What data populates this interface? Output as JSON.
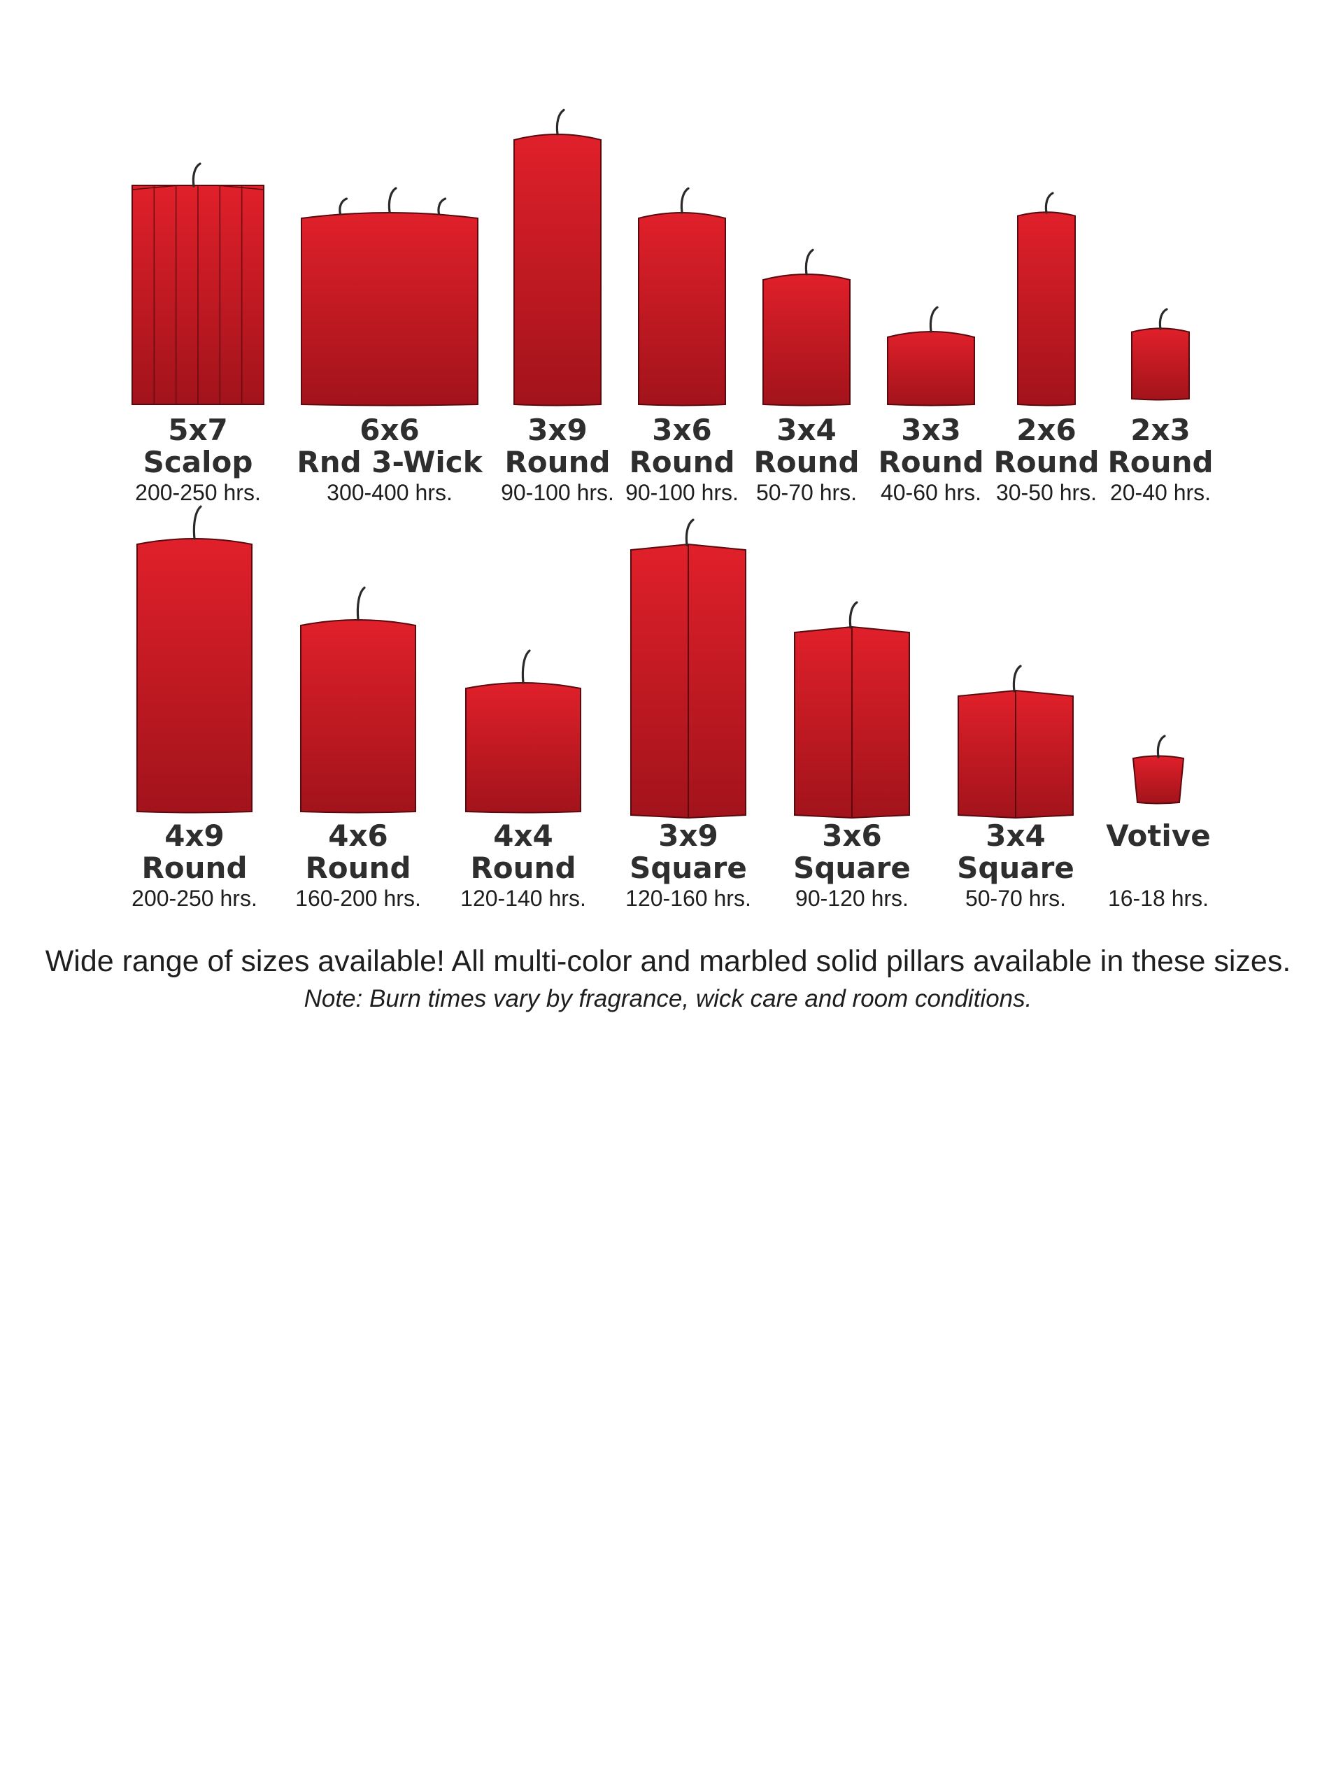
{
  "colors": {
    "candle_top": "#e0202a",
    "candle_bottom": "#a2131b",
    "outline": "#5a0a0e",
    "wick": "#2a2a2a",
    "text": "#2b2b2b"
  },
  "candles": [
    {
      "id": "5x7-scalop",
      "style": "scalop",
      "size": "5x7",
      "shape": "Scalop",
      "hours": "200-250 hrs."
    },
    {
      "id": "6x6-rnd-3-wick",
      "style": "round",
      "wicks": 3,
      "size": "6x6",
      "shape": "Rnd 3-Wick",
      "hours": "300-400 hrs."
    },
    {
      "id": "3x9-round",
      "style": "round",
      "size": "3x9",
      "shape": "Round",
      "hours": "90-100 hrs."
    },
    {
      "id": "3x6-round",
      "style": "round",
      "size": "3x6",
      "shape": "Round",
      "hours": "90-100 hrs."
    },
    {
      "id": "3x4-round",
      "style": "round",
      "size": "3x4",
      "shape": "Round",
      "hours": "50-70 hrs."
    },
    {
      "id": "3x3-round",
      "style": "round",
      "size": "3x3",
      "shape": "Round",
      "hours": "40-60 hrs."
    },
    {
      "id": "2x6-round",
      "style": "round",
      "size": "2x6",
      "shape": "Round",
      "hours": "30-50 hrs."
    },
    {
      "id": "2x3-round",
      "style": "round",
      "size": "2x3",
      "shape": "Round",
      "hours": "20-40 hrs."
    },
    {
      "id": "4x9-round",
      "style": "round",
      "size": "4x9",
      "shape": "Round",
      "hours": "200-250 hrs."
    },
    {
      "id": "4x6-round",
      "style": "round",
      "size": "4x6",
      "shape": "Round",
      "hours": "160-200 hrs."
    },
    {
      "id": "4x4-round",
      "style": "round",
      "size": "4x4",
      "shape": "Round",
      "hours": "120-140 hrs."
    },
    {
      "id": "3x9-square",
      "style": "square",
      "size": "3x9",
      "shape": "Square",
      "hours": "120-160 hrs."
    },
    {
      "id": "3x6-square",
      "style": "square",
      "size": "3x6",
      "shape": "Square",
      "hours": "90-120 hrs."
    },
    {
      "id": "3x4-square",
      "style": "square",
      "size": "3x4",
      "shape": "Square",
      "hours": "50-70 hrs."
    },
    {
      "id": "votive",
      "style": "votive",
      "size": "",
      "shape": "Votive",
      "hours": "16-18 hrs."
    }
  ],
  "caption": {
    "main": "Wide range of sizes available! All multi-color and marbled solid pillars available in these sizes.",
    "note": "Note: Burn times vary by fragrance, wick care and room conditions."
  }
}
